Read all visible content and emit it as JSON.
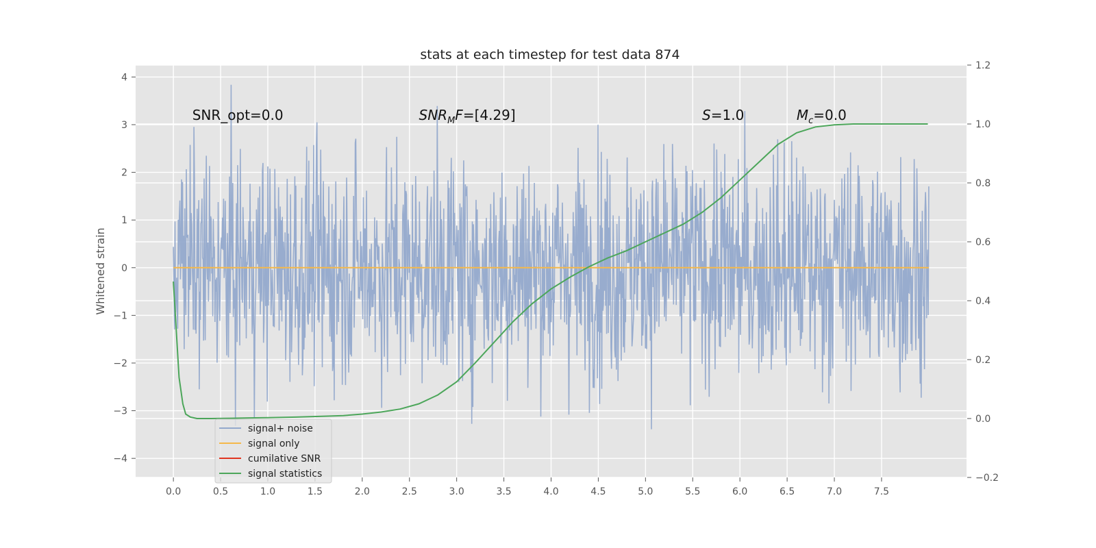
{
  "chart_data": {
    "type": "line",
    "title": "stats at each timestep for test data 874",
    "ylabel": "Whitened strain",
    "xlabel": "",
    "grid": true,
    "xlim": [
      -0.4,
      8.4
    ],
    "ylim": [
      -4.4,
      4.25
    ],
    "y2lim": [
      -0.2,
      1.2
    ],
    "x_ticks": [
      "0.0",
      "0.5",
      "1.0",
      "1.5",
      "2.0",
      "2.5",
      "3.0",
      "3.5",
      "4.0",
      "4.5",
      "5.0",
      "5.5",
      "6.0",
      "6.5",
      "7.0",
      "7.5"
    ],
    "y_ticks": [
      "4",
      "3",
      "2",
      "1",
      "0",
      "−1",
      "−2",
      "−3",
      "−4"
    ],
    "y2_ticks": [
      "1.2",
      "1.0",
      "0.8",
      "0.6",
      "0.4",
      "0.2",
      "0.0",
      "−0.2"
    ],
    "annotations": [
      {
        "text": "SNR_opt=0.0",
        "x": 0.2,
        "y": 3.1,
        "math": false
      },
      {
        "text": "SNR_MF=[4.29]",
        "x": 2.6,
        "y": 3.1,
        "math": true,
        "kind": "snrmf"
      },
      {
        "text": "S=1.0",
        "x": 5.6,
        "y": 3.1,
        "math": true,
        "kind": "s"
      },
      {
        "text": "M_c=0.0",
        "x": 6.6,
        "y": 3.1,
        "math": true,
        "kind": "mc"
      }
    ],
    "legend": {
      "position": "lower-left",
      "entries": [
        "signal+ noise",
        "signal only",
        "cumilative SNR",
        "signal statistics"
      ]
    },
    "series": [
      {
        "name": "signal+ noise",
        "color": "#94a9cc",
        "axis": "left",
        "kind": "noise",
        "x_range": [
          0.0,
          8.0
        ],
        "y_envelope": [
          -3.9,
          3.9
        ],
        "y_std": 1.0
      },
      {
        "name": "signal only",
        "color": "#f5b84a",
        "axis": "left",
        "x": [
          0.0,
          8.0
        ],
        "y": [
          0.0,
          0.0
        ]
      },
      {
        "name": "cumilative SNR",
        "color": "#e0341f",
        "axis": "right",
        "x": [],
        "y": []
      },
      {
        "name": "signal statistics",
        "color": "#4ca65a",
        "axis": "right",
        "x": [
          0.0,
          0.03,
          0.06,
          0.1,
          0.13,
          0.18,
          0.25,
          0.4,
          0.6,
          0.8,
          1.0,
          1.3,
          1.6,
          1.8,
          2.0,
          2.2,
          2.4,
          2.6,
          2.8,
          3.0,
          3.2,
          3.4,
          3.6,
          3.8,
          4.0,
          4.2,
          4.4,
          4.6,
          4.8,
          5.0,
          5.2,
          5.4,
          5.6,
          5.8,
          6.0,
          6.2,
          6.4,
          6.6,
          6.8,
          7.0,
          7.2,
          7.4,
          7.6,
          7.8,
          7.99
        ],
        "y": [
          0.465,
          0.3,
          0.14,
          0.05,
          0.015,
          0.005,
          0.0,
          0.0,
          0.001,
          0.002,
          0.003,
          0.005,
          0.008,
          0.01,
          0.015,
          0.022,
          0.032,
          0.05,
          0.08,
          0.125,
          0.19,
          0.26,
          0.33,
          0.39,
          0.44,
          0.48,
          0.515,
          0.545,
          0.57,
          0.6,
          0.63,
          0.66,
          0.7,
          0.75,
          0.81,
          0.87,
          0.93,
          0.97,
          0.99,
          0.997,
          1.0,
          1.0,
          1.0,
          1.0,
          1.0
        ]
      }
    ]
  }
}
